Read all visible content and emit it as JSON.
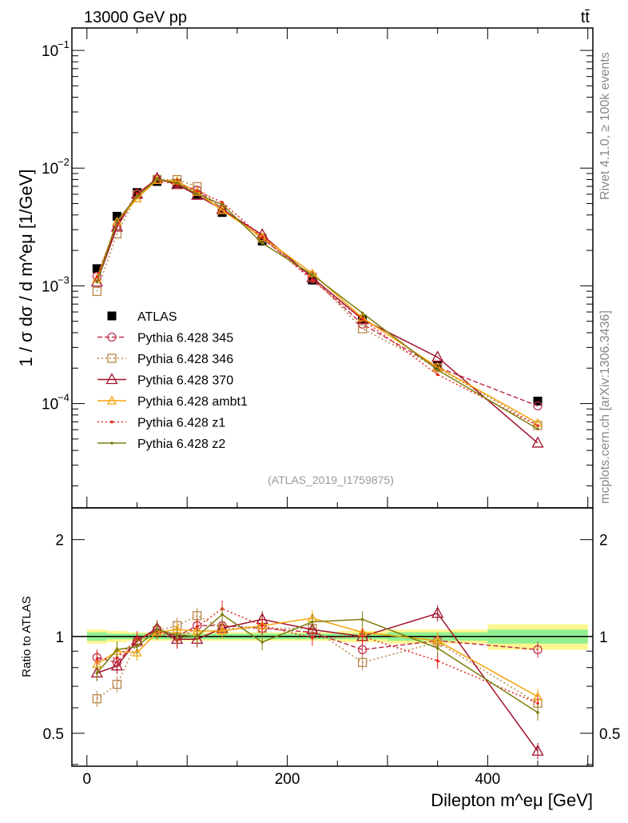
{
  "header": {
    "left": "13000 GeV pp",
    "right": "tt̄"
  },
  "side": {
    "rivet": "Rivet 4.1.0, ≥ 100k events",
    "mcplots": "mcplots.cern.ch [arXiv:1306.3436]"
  },
  "chart_data": {
    "type": "line",
    "analysis": "(ATLAS_2019_I1759875)",
    "ylabel": "1 / σ  dσ / d m^eμ [1/GeV]",
    "ratio_ylabel": "Ratio to ATLAS",
    "xlabel": "Dilepton m^eμ [GeV]",
    "xlim": [
      -15,
      505
    ],
    "ylim": [
      1.3e-05,
      0.155
    ],
    "ratio_ylim": [
      0.395,
      2.51
    ],
    "xticks": [
      {
        "v": 0,
        "label": "0"
      },
      {
        "v": 200,
        "label": "200"
      },
      {
        "v": 400,
        "label": "400"
      }
    ],
    "yticks": [
      {
        "v": 0.1,
        "label": "10",
        "exp": "−1"
      },
      {
        "v": 0.01,
        "label": "10",
        "exp": "−2"
      },
      {
        "v": 0.001,
        "label": "10",
        "exp": "−3"
      },
      {
        "v": 0.0001,
        "label": "10",
        "exp": "−4"
      }
    ],
    "ratio_yticks": [
      {
        "v": 2,
        "label": "2"
      },
      {
        "v": 1,
        "label": "1"
      },
      {
        "v": 0.5,
        "label": "0.5"
      }
    ],
    "bin_edges": [
      0,
      20,
      40,
      60,
      80,
      100,
      120,
      150,
      200,
      250,
      300,
      400,
      500
    ],
    "x": [
      10,
      30,
      50,
      70,
      90,
      110,
      135,
      175,
      225,
      275,
      350,
      450
    ],
    "data": {
      "name": "ATLAS",
      "values": [
        0.0014,
        0.0039,
        0.0062,
        0.0077,
        0.0074,
        0.006,
        0.0042,
        0.0024,
        0.00112,
        0.00052,
        0.00021,
        0.000105
      ],
      "stat_band": [
        0.03,
        0.02,
        0.02,
        0.02,
        0.02,
        0.02,
        0.02,
        0.02,
        0.02,
        0.02,
        0.03,
        0.05
      ],
      "total_band": [
        0.05,
        0.04,
        0.03,
        0.03,
        0.03,
        0.03,
        0.03,
        0.03,
        0.03,
        0.04,
        0.05,
        0.09
      ]
    },
    "series": [
      {
        "name": "Pythia 6.428 345",
        "color": "#c0334d",
        "marker": "circle",
        "dash": "6,3",
        "ratio": [
          0.86,
          0.83,
          0.97,
          1.05,
          1.0,
          1.08,
          1.08,
          1.06,
          1.03,
          0.91,
          0.97,
          0.91
        ]
      },
      {
        "name": "Pythia 6.428 346",
        "color": "#b8864b",
        "marker": "square",
        "dash": "2,3",
        "ratio": [
          0.64,
          0.71,
          0.96,
          1.04,
          1.08,
          1.16,
          1.06,
          1.06,
          1.06,
          0.83,
          0.96,
          0.62
        ]
      },
      {
        "name": "Pythia 6.428 370",
        "color": "#a0102a",
        "marker": "triangle",
        "dash": "",
        "ratio": [
          0.77,
          0.81,
          0.97,
          1.06,
          0.98,
          0.98,
          1.06,
          1.13,
          1.05,
          1.0,
          1.18,
          0.44
        ]
      },
      {
        "name": "Pythia 6.428 ambt1",
        "color": "#f5a30a",
        "marker": "triangle-small",
        "dash": "",
        "ratio": [
          0.82,
          0.9,
          0.89,
          1.03,
          1.05,
          1.04,
          1.04,
          1.08,
          1.14,
          1.03,
          0.97,
          0.65
        ]
      },
      {
        "name": "Pythia 6.428 z1",
        "color": "#e8231c",
        "marker": "dot",
        "dash": "2,3",
        "ratio": [
          0.85,
          0.86,
          0.98,
          1.04,
          0.97,
          1.07,
          1.22,
          1.08,
          0.99,
          1.0,
          0.84,
          0.62
        ]
      },
      {
        "name": "Pythia 6.428 z2",
        "color": "#7f7f10",
        "marker": "dot",
        "dash": "",
        "ratio": [
          0.77,
          0.91,
          0.93,
          1.05,
          1.01,
          1.0,
          1.17,
          0.96,
          1.11,
          1.13,
          0.92,
          0.58
        ]
      }
    ]
  }
}
